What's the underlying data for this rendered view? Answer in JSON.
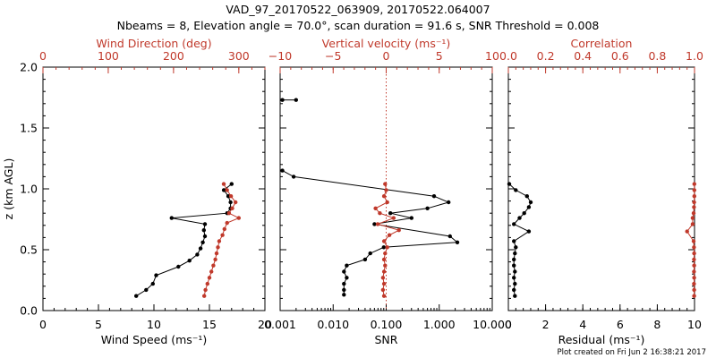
{
  "title_line1": "VAD_97_20170522_063909, 20170522.064007",
  "title_line2": "Nbeams = 8, Elevation angle = 70.0°, scan duration = 91.6 s, SNR Threshold = 0.008",
  "footer": "Plot created on Fri Jun  2 16:38:21 2017",
  "colors": {
    "black": "#000000",
    "red": "#c0392b"
  },
  "chart_data": [
    {
      "type": "line",
      "ylabel": "z (km AGL)",
      "ylim": [
        0.0,
        2.0
      ],
      "yticks": [
        "0.0",
        "0.5",
        "1.0",
        "1.5",
        "2.0"
      ],
      "bottom_axis": {
        "label": "Wind Speed (ms⁻¹)",
        "range": [
          0,
          20
        ],
        "ticks": [
          "0",
          "5",
          "10",
          "15",
          "20"
        ]
      },
      "top_axis": {
        "label": "Wind Direction (deg)",
        "range": [
          0,
          340
        ],
        "ticks": [
          "0",
          "100",
          "200",
          "300"
        ],
        "color": "#c0392b"
      },
      "series": [
        {
          "axis": "bottom",
          "color": "#000000",
          "points": [
            [
              8.4,
              0.12
            ],
            [
              9.3,
              0.17
            ],
            [
              9.9,
              0.22
            ],
            [
              10.2,
              0.29
            ],
            [
              12.2,
              0.36
            ],
            [
              13.2,
              0.41
            ],
            [
              13.9,
              0.46
            ],
            [
              14.2,
              0.51
            ],
            [
              14.4,
              0.56
            ],
            [
              14.6,
              0.61
            ],
            [
              14.5,
              0.66
            ],
            [
              14.6,
              0.71
            ],
            [
              11.6,
              0.76
            ],
            [
              16.6,
              0.8
            ],
            [
              16.9,
              0.84
            ],
            [
              16.9,
              0.89
            ],
            [
              16.7,
              0.94
            ],
            [
              16.3,
              0.99
            ],
            [
              17.0,
              1.04
            ]
          ]
        },
        {
          "axis": "top",
          "color": "#c0392b",
          "points": [
            [
              247,
              0.12
            ],
            [
              249,
              0.17
            ],
            [
              252,
              0.22
            ],
            [
              255,
              0.27
            ],
            [
              258,
              0.32
            ],
            [
              261,
              0.37
            ],
            [
              264,
              0.42
            ],
            [
              266,
              0.47
            ],
            [
              268,
              0.52
            ],
            [
              270,
              0.57
            ],
            [
              275,
              0.62
            ],
            [
              278,
              0.67
            ],
            [
              282,
              0.72
            ],
            [
              300,
              0.76
            ],
            [
              285,
              0.8
            ],
            [
              290,
              0.84
            ],
            [
              295,
              0.89
            ],
            [
              288,
              0.94
            ],
            [
              282,
              0.99
            ],
            [
              277,
              1.04
            ]
          ]
        }
      ]
    },
    {
      "type": "line",
      "ylim": [
        0.0,
        2.0
      ],
      "bottom_axis": {
        "label": "SNR",
        "scale": "log",
        "range": [
          0.001,
          10
        ],
        "ticks": [
          "0.001",
          "0.010",
          "0.100",
          "1.000",
          "10.000"
        ]
      },
      "top_axis": {
        "label": "Vertical velocity (ms⁻¹)",
        "range": [
          -10,
          10
        ],
        "ticks": [
          "−10",
          "−5",
          "0",
          "5",
          "10"
        ],
        "color": "#c0392b"
      },
      "reference_line": {
        "axis": "top",
        "value": 0,
        "style": "dotted"
      },
      "series": [
        {
          "axis": "bottom",
          "color": "#000000",
          "segments": [
            [
              [
                0.0011,
                1.73
              ],
              [
                0.002,
                1.73
              ]
            ],
            [
              [
                0.0011,
                1.15
              ],
              [
                0.0018,
                1.1
              ],
              [
                0.8,
                0.94
              ],
              [
                1.5,
                0.89
              ],
              [
                0.6,
                0.84
              ],
              [
                0.12,
                0.8
              ],
              [
                0.3,
                0.76
              ],
              [
                0.06,
                0.71
              ],
              [
                1.6,
                0.61
              ],
              [
                2.2,
                0.56
              ],
              [
                0.09,
                0.52
              ],
              [
                0.05,
                0.47
              ],
              [
                0.04,
                0.42
              ],
              [
                0.018,
                0.37
              ],
              [
                0.016,
                0.32
              ],
              [
                0.018,
                0.27
              ],
              [
                0.016,
                0.22
              ],
              [
                0.016,
                0.17
              ],
              [
                0.016,
                0.13
              ]
            ]
          ]
        },
        {
          "axis": "top",
          "color": "#c0392b",
          "points": [
            [
              -0.2,
              0.12
            ],
            [
              -0.3,
              0.17
            ],
            [
              -0.2,
              0.22
            ],
            [
              -0.3,
              0.27
            ],
            [
              -0.2,
              0.32
            ],
            [
              -0.1,
              0.37
            ],
            [
              -0.2,
              0.42
            ],
            [
              -0.1,
              0.47
            ],
            [
              0.1,
              0.52
            ],
            [
              -0.2,
              0.57
            ],
            [
              0.3,
              0.62
            ],
            [
              1.2,
              0.66
            ],
            [
              -0.8,
              0.71
            ],
            [
              0.7,
              0.76
            ],
            [
              -0.6,
              0.8
            ],
            [
              -1.0,
              0.84
            ],
            [
              0.1,
              0.89
            ],
            [
              -0.2,
              0.94
            ],
            [
              0.0,
              0.99
            ],
            [
              -0.1,
              1.04
            ]
          ]
        }
      ]
    },
    {
      "type": "line",
      "ylim": [
        0.0,
        2.0
      ],
      "bottom_axis": {
        "label": "Residual (ms⁻¹)",
        "range": [
          0,
          10
        ],
        "ticks": [
          "0",
          "2",
          "4",
          "6",
          "8",
          "10"
        ]
      },
      "top_axis": {
        "label": "Correlation",
        "range": [
          0.0,
          1.0
        ],
        "ticks": [
          "0.0",
          "0.2",
          "0.4",
          "0.6",
          "0.8",
          "1.0"
        ],
        "color": "#c0392b"
      },
      "series": [
        {
          "axis": "bottom",
          "color": "#000000",
          "points": [
            [
              0.35,
              0.12
            ],
            [
              0.3,
              0.17
            ],
            [
              0.35,
              0.22
            ],
            [
              0.3,
              0.27
            ],
            [
              0.35,
              0.32
            ],
            [
              0.3,
              0.37
            ],
            [
              0.3,
              0.42
            ],
            [
              0.35,
              0.47
            ],
            [
              0.4,
              0.52
            ],
            [
              0.3,
              0.57
            ],
            [
              1.1,
              0.65
            ],
            [
              0.3,
              0.71
            ],
            [
              0.6,
              0.76
            ],
            [
              0.85,
              0.8
            ],
            [
              1.1,
              0.85
            ],
            [
              1.2,
              0.89
            ],
            [
              1.0,
              0.94
            ],
            [
              0.4,
              0.99
            ],
            [
              0.05,
              1.04
            ]
          ]
        },
        {
          "axis": "top",
          "color": "#c0392b",
          "points": [
            [
              0.998,
              0.12
            ],
            [
              0.998,
              0.17
            ],
            [
              0.997,
              0.22
            ],
            [
              0.998,
              0.27
            ],
            [
              0.997,
              0.32
            ],
            [
              0.998,
              0.37
            ],
            [
              0.997,
              0.42
            ],
            [
              0.998,
              0.47
            ],
            [
              0.997,
              0.52
            ],
            [
              0.995,
              0.57
            ],
            [
              0.96,
              0.65
            ],
            [
              0.99,
              0.71
            ],
            [
              0.99,
              0.76
            ],
            [
              0.995,
              0.8
            ],
            [
              0.997,
              0.85
            ],
            [
              0.998,
              0.89
            ],
            [
              0.999,
              0.94
            ],
            [
              0.999,
              0.99
            ],
            [
              0.999,
              1.04
            ]
          ]
        }
      ]
    }
  ]
}
